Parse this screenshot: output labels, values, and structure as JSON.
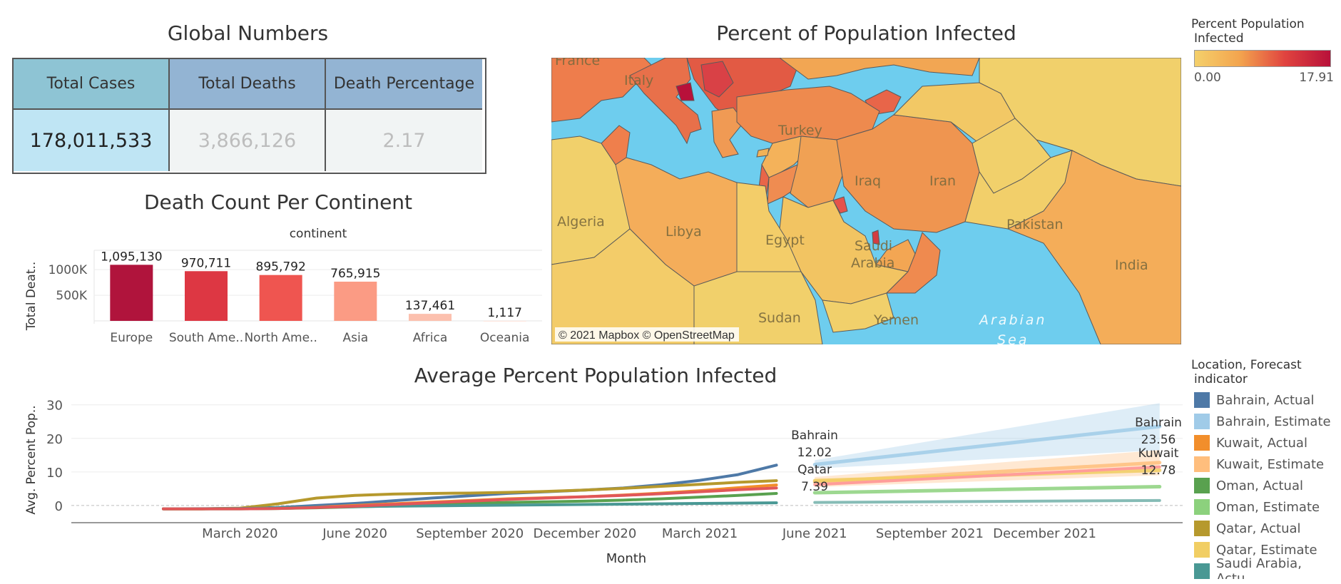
{
  "global_numbers": {
    "title": "Global Numbers",
    "headers": [
      "Total Cases",
      "Total Deaths",
      "Death Percentage"
    ],
    "values": [
      "178,011,533",
      "3,866,126",
      "2.17"
    ],
    "colors": {
      "header_cases": "#8ec4d4",
      "header_other": "#93b4d3",
      "cell_cases": "#bfe5f4",
      "cell_other": "#f1f4f4",
      "muted_text": "#bdbdbd"
    }
  },
  "death_chart": {
    "title": "Death Count Per Continent",
    "header": "continent",
    "y_axis_label": "Total Deat..",
    "y_ticks": [
      "1000K",
      "500K"
    ]
  },
  "map": {
    "title": "Percent of Population Infected",
    "attribution": "© 2021 Mapbox © OpenStreetMap",
    "legend_title": [
      "Percent Population",
      "Infected"
    ],
    "legend_min": "0.00",
    "legend_max": "17.91",
    "labels": [
      {
        "text": "France",
        "style": "country"
      },
      {
        "text": "Italy",
        "style": "country"
      },
      {
        "text": "Turkey",
        "style": "country"
      },
      {
        "text": "Iraq",
        "style": "country"
      },
      {
        "text": "Iran",
        "style": "country"
      },
      {
        "text": "Algeria",
        "style": "country"
      },
      {
        "text": "Libya",
        "style": "country"
      },
      {
        "text": "Egypt",
        "style": "country"
      },
      {
        "text": "Saudi",
        "style": "country"
      },
      {
        "text": "Arabia",
        "style": "country"
      },
      {
        "text": "Pakistan",
        "style": "country"
      },
      {
        "text": "India",
        "style": "country"
      },
      {
        "text": "Sudan",
        "style": "country"
      },
      {
        "text": "Yemen",
        "style": "country"
      },
      {
        "text": "Arabian",
        "style": "sea"
      },
      {
        "text": "Sea",
        "style": "sea"
      }
    ],
    "colors": {
      "sea": "#6ecdee",
      "low": "#f1d06b",
      "mid": "#f3a44e",
      "high": "#e0433f",
      "max": "#b8113a",
      "border": "#5a5a5a"
    }
  },
  "trend_chart": {
    "title": "Average Percent Population Infected",
    "x_axis_label": "Month",
    "y_axis_label": "Avg. Percent Pop..",
    "legend_title": [
      "Location, Forecast",
      "indicator"
    ],
    "legend": [
      {
        "label": "Bahrain, Actual",
        "color": "#4e79a7"
      },
      {
        "label": "Bahrain, Estimate",
        "color": "#a0cbe8"
      },
      {
        "label": "Kuwait, Actual",
        "color": "#f28e2b"
      },
      {
        "label": "Kuwait, Estimate",
        "color": "#ffbe7d"
      },
      {
        "label": "Oman, Actual",
        "color": "#59a14f"
      },
      {
        "label": "Oman, Estimate",
        "color": "#8cd17d"
      },
      {
        "label": "Qatar, Actual",
        "color": "#b6992d"
      },
      {
        "label": "Qatar, Estimate",
        "color": "#f1ce63"
      },
      {
        "label": "Saudi Arabia, Actu..",
        "color": "#499894"
      }
    ],
    "annotations": [
      {
        "name": "Bahrain",
        "value": "12.02"
      },
      {
        "name": "Qatar",
        "value": "7.39"
      },
      {
        "name": "Bahrain",
        "value": "23.56"
      },
      {
        "name": "Kuwait",
        "value": "12.78"
      }
    ]
  },
  "chart_data": [
    {
      "type": "bar",
      "title": "Death Count Per Continent",
      "xlabel": "continent",
      "ylabel": "Total Deat..",
      "categories": [
        "Europe",
        "South Ame..",
        "North Ame..",
        "Asia",
        "Africa",
        "Oceania"
      ],
      "values": [
        1095130,
        970711,
        895792,
        765915,
        137461,
        1117
      ],
      "value_labels": [
        "1,095,130",
        "970,711",
        "895,792",
        "765,915",
        "137,461",
        "1,117"
      ],
      "colors": [
        "#b0143c",
        "#dd3743",
        "#ef5550",
        "#fb9b84",
        "#fcc0ae",
        "#fde3d9"
      ],
      "ylim": [
        0,
        1100000
      ],
      "yticks": [
        500000,
        1000000
      ],
      "grid": true
    },
    {
      "type": "line",
      "title": "Average Percent Population Infected",
      "xlabel": "Month",
      "ylabel": "Avg. Percent Pop..",
      "ylim": [
        -3,
        31
      ],
      "yticks": [
        0,
        10,
        20,
        30
      ],
      "x_ticks": [
        "March 2020",
        "June 2020",
        "September 2020",
        "December 2020",
        "March 2021",
        "June 2021",
        "September 2021",
        "December 2021"
      ],
      "x_tick_months": [
        2,
        5,
        8,
        11,
        14,
        17,
        20,
        23
      ],
      "x_range": [
        -2.4,
        26.6
      ],
      "series": [
        {
          "name": "Bahrain, Actual",
          "color": "#4e79a7",
          "x": [
            0,
            1,
            2,
            3,
            4,
            5,
            6,
            7,
            8,
            9,
            10,
            11,
            12,
            13,
            14,
            15,
            16
          ],
          "y": [
            -1,
            -1,
            -0.9,
            -0.6,
            0,
            0.6,
            1.4,
            2.2,
            2.9,
            3.6,
            4.1,
            4.6,
            5.2,
            6.2,
            7.5,
            9.2,
            12.02
          ]
        },
        {
          "name": "Bahrain, Estimate",
          "color": "#a0cbe8",
          "x": [
            17,
            26
          ],
          "y": [
            12.2,
            23.56
          ],
          "band_upper": [
            13.5,
            30.5
          ],
          "band_lower": [
            11,
            16.5
          ]
        },
        {
          "name": "Kuwait, Actual",
          "color": "#f28e2b",
          "x": [
            0,
            1,
            2,
            3,
            4,
            5,
            6,
            7,
            8,
            9,
            10,
            11,
            12,
            13,
            14,
            15,
            16
          ],
          "y": [
            -1,
            -1,
            -0.9,
            -0.8,
            -0.5,
            0,
            0.5,
            1,
            1.5,
            2,
            2.3,
            2.6,
            3.1,
            3.7,
            4.4,
            5.3,
            6.1
          ]
        },
        {
          "name": "Kuwait, Estimate",
          "color": "#ffbe7d",
          "x": [
            17,
            26
          ],
          "y": [
            7,
            12.78
          ],
          "band_upper": [
            8.5,
            16.5
          ],
          "band_lower": [
            5.5,
            9
          ]
        },
        {
          "name": "Oman, Actual",
          "color": "#59a14f",
          "x": [
            0,
            1,
            2,
            3,
            4,
            5,
            6,
            7,
            8,
            9,
            10,
            11,
            12,
            13,
            14,
            15,
            16
          ],
          "y": [
            -1,
            -1,
            -1,
            -0.9,
            -0.7,
            -0.4,
            -0.1,
            0.3,
            0.6,
            0.9,
            1.1,
            1.3,
            1.6,
            2,
            2.5,
            3,
            3.6
          ]
        },
        {
          "name": "Oman, Estimate",
          "color": "#8cd17d",
          "x": [
            17,
            26
          ],
          "y": [
            3.8,
            5.6
          ]
        },
        {
          "name": "Qatar, Actual",
          "color": "#b6992d",
          "x": [
            0,
            1,
            2,
            3,
            4,
            5,
            6,
            7,
            8,
            9,
            10,
            11,
            12,
            13,
            14,
            15,
            16
          ],
          "y": [
            -1,
            -1,
            -0.8,
            0.5,
            2.2,
            3,
            3.4,
            3.6,
            3.7,
            3.9,
            4.2,
            4.6,
            5.1,
            5.7,
            6.3,
            6.9,
            7.39
          ]
        },
        {
          "name": "Qatar, Estimate",
          "color": "#f1ce63",
          "x": [
            17,
            26
          ],
          "y": [
            7.4,
            10.5
          ]
        },
        {
          "name": "Saudi Arabia, Actu..",
          "color": "#499894",
          "x": [
            0,
            2,
            4,
            6,
            8,
            10,
            12,
            14,
            16
          ],
          "y": [
            -1,
            -0.9,
            -0.5,
            -0.2,
            0,
            0.2,
            0.4,
            0.6,
            0.8
          ]
        },
        {
          "x": [
            17,
            26
          ],
          "y": [
            0.9,
            1.5
          ],
          "color": "#86bcb6"
        },
        {
          "x": [
            17,
            26
          ],
          "y": [
            6.2,
            11.5
          ],
          "color": "#ff9d9a"
        },
        {
          "x": [
            0,
            1,
            2,
            3,
            4,
            5,
            6,
            7,
            8,
            9,
            10,
            11,
            12,
            13,
            14,
            15,
            16
          ],
          "y": [
            -1,
            -1,
            -1,
            -0.9,
            -0.6,
            -0.2,
            0.3,
            0.8,
            1.3,
            1.8,
            2.2,
            2.6,
            3,
            3.5,
            4.1,
            4.7,
            5.2
          ],
          "color": "#e15759"
        }
      ]
    }
  ]
}
